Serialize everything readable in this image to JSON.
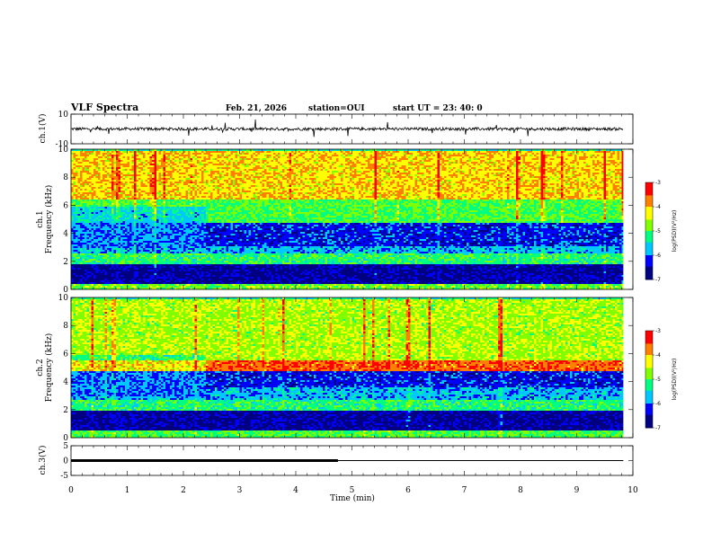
{
  "header": {
    "title": "VLF Spectra",
    "date": "Feb. 21, 2026",
    "station": "station=OUI",
    "start": "start  UT  =   23: 40: 0"
  },
  "colors": {
    "spectrum_scale": [
      "#000080",
      "#0000ff",
      "#00c8ff",
      "#00ff80",
      "#80ff00",
      "#ffff00",
      "#ff8000",
      "#ff0000",
      "#ffffff"
    ],
    "trace": "#000000"
  },
  "chart_data": [
    {
      "type": "line",
      "name": "ch1-waveform",
      "ylabel": "ch.1(V)",
      "ylim": [
        -10,
        10
      ],
      "yticks": [
        "10",
        "-10"
      ],
      "baseline": 0,
      "noise_amplitude": 2
    },
    {
      "type": "heatmap",
      "name": "ch1-spectrogram",
      "ylabel_line1": "ch.1",
      "ylabel_line2": "Frequency  (kHz)",
      "ylim": [
        0,
        10
      ],
      "yticks": [
        "0",
        "2",
        "4",
        "6",
        "8",
        "10"
      ],
      "colorbar": {
        "label": "log(PSD)(V²/Hz)",
        "ticks": [
          "-3",
          "-4",
          "-5",
          "-6",
          "-7"
        ],
        "range": [
          -7,
          -3
        ]
      },
      "bands": [
        {
          "from_khz": 0.0,
          "to_khz": 0.5,
          "level": 0.55
        },
        {
          "from_khz": 0.5,
          "to_khz": 1.8,
          "level": 0.08
        },
        {
          "from_khz": 1.8,
          "to_khz": 2.6,
          "level": 0.45
        },
        {
          "from_khz": 2.6,
          "to_khz": 3.2,
          "level": 0.3
        },
        {
          "from_khz": 3.2,
          "to_khz": 4.8,
          "level": 0.18
        },
        {
          "from_khz": 4.8,
          "to_khz": 6.5,
          "level": 0.5
        },
        {
          "from_khz": 6.5,
          "to_khz": 10.0,
          "level": 0.72
        }
      ],
      "transition_min": 2.4
    },
    {
      "type": "heatmap",
      "name": "ch2-spectrogram",
      "ylabel_line1": "ch.2",
      "ylabel_line2": "Frequency  (kHz)",
      "ylim": [
        0,
        10
      ],
      "yticks": [
        "0",
        "2",
        "4",
        "6",
        "8",
        "10"
      ],
      "colorbar": {
        "label": "log(PSD)(V²/Hz)",
        "ticks": [
          "-3",
          "-4",
          "-5",
          "-6",
          "-7"
        ],
        "range": [
          -7,
          -3
        ]
      },
      "bands": [
        {
          "from_khz": 0.0,
          "to_khz": 0.6,
          "level": 0.5
        },
        {
          "from_khz": 0.6,
          "to_khz": 2.0,
          "level": 0.08
        },
        {
          "from_khz": 2.0,
          "to_khz": 2.8,
          "level": 0.45
        },
        {
          "from_khz": 2.8,
          "to_khz": 3.6,
          "level": 0.3
        },
        {
          "from_khz": 3.6,
          "to_khz": 4.8,
          "level": 0.18
        },
        {
          "from_khz": 4.8,
          "to_khz": 5.6,
          "level": 0.85
        },
        {
          "from_khz": 5.6,
          "to_khz": 10.0,
          "level": 0.6
        }
      ],
      "transition_min": 2.4
    },
    {
      "type": "line",
      "name": "ch3-signal",
      "ylabel": "ch.3(V)",
      "ylim": [
        -5,
        5
      ],
      "yticks": [
        "5",
        "0",
        "-5"
      ],
      "level_v": 0,
      "thick_until_min": 4.75
    }
  ],
  "xaxis": {
    "label": "Time  (min)",
    "range": [
      0,
      10
    ],
    "ticks": [
      "0",
      "1",
      "2",
      "3",
      "4",
      "5",
      "6",
      "7",
      "8",
      "9",
      "10"
    ],
    "data_end_min": 9.83
  }
}
